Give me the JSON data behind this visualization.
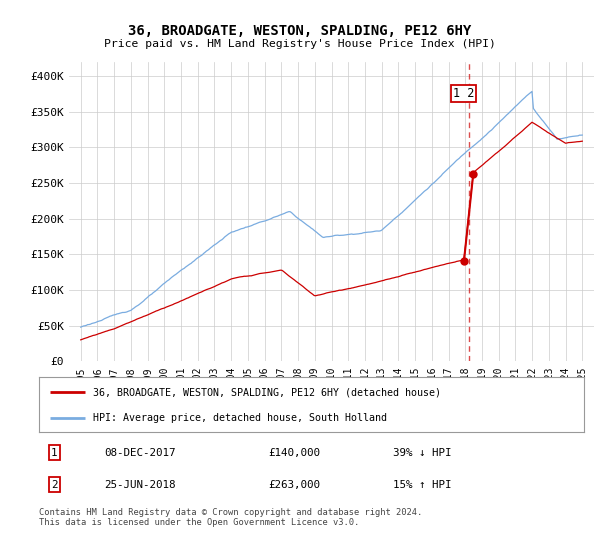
{
  "title": "36, BROADGATE, WESTON, SPALDING, PE12 6HY",
  "subtitle": "Price paid vs. HM Land Registry's House Price Index (HPI)",
  "ylabel_ticks": [
    "£0",
    "£50K",
    "£100K",
    "£150K",
    "£200K",
    "£250K",
    "£300K",
    "£350K",
    "£400K"
  ],
  "ytick_values": [
    0,
    50000,
    100000,
    150000,
    200000,
    250000,
    300000,
    350000,
    400000
  ],
  "ylim": [
    0,
    420000
  ],
  "x_start_year": 1995,
  "x_end_year": 2025,
  "hpi_color": "#7aace0",
  "price_color": "#cc0000",
  "vline_color": "#cc0000",
  "sale1_year": 2017.92,
  "sale1_price": 140000,
  "sale2_year": 2018.48,
  "sale2_price": 263000,
  "vline_x": 2018.2,
  "legend_label1": "36, BROADGATE, WESTON, SPALDING, PE12 6HY (detached house)",
  "legend_label2": "HPI: Average price, detached house, South Holland",
  "table_row1": [
    "1",
    "08-DEC-2017",
    "£140,000",
    "39% ↓ HPI"
  ],
  "table_row2": [
    "2",
    "25-JUN-2018",
    "£263,000",
    "15% ↑ HPI"
  ],
  "footnote": "Contains HM Land Registry data © Crown copyright and database right 2024.\nThis data is licensed under the Open Government Licence v3.0.",
  "background_color": "#ffffff",
  "grid_color": "#cccccc"
}
